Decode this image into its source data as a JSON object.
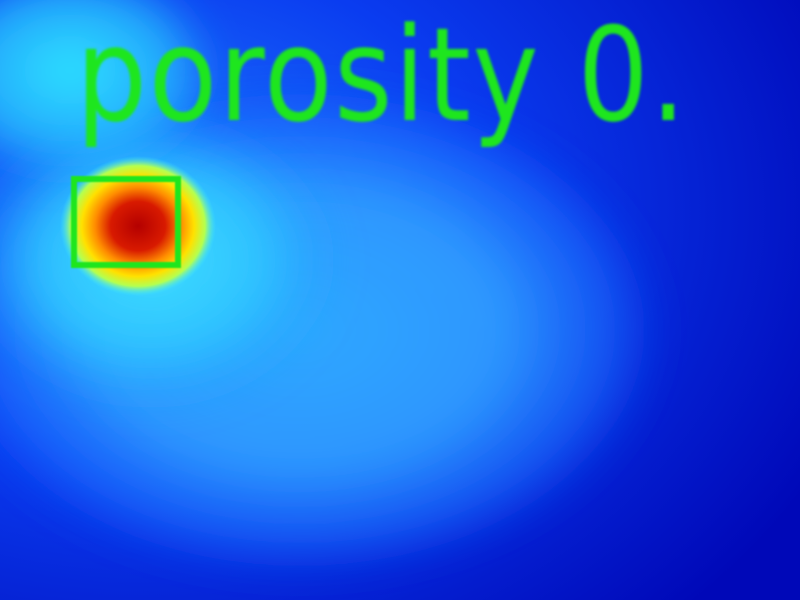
{
  "overlay": {
    "label": "porosity 0.",
    "label_color": "#1ee61e",
    "box_color": "#1ee61e"
  },
  "colormap": {
    "type": "jet",
    "low": "#0000c0",
    "mid": "#00e6ff",
    "high": "#c80000"
  }
}
